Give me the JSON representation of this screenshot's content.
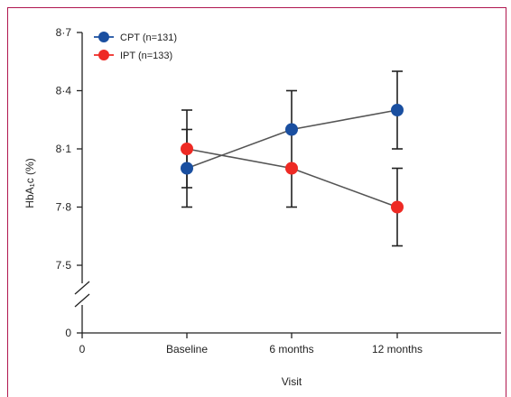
{
  "chart_data": {
    "type": "line",
    "categories": [
      "Baseline",
      "6 months",
      "12 months"
    ],
    "x_origin_label": "0",
    "y_zero_label": "0",
    "y_tick_labels": [
      "7·5",
      "7·8",
      "8·1",
      "8·4",
      "8·7"
    ],
    "y_ticks": [
      7.5,
      7.8,
      8.1,
      8.4,
      8.7
    ],
    "ylim": [
      7.5,
      8.7
    ],
    "y_axis_break": true,
    "xlabel": "Visit",
    "ylabel": "HbA₁c (%)",
    "legend_position": "top-left",
    "series": [
      {
        "name": "CPT (n=131)",
        "color": "#1a4fa0",
        "values": [
          8.0,
          8.2,
          8.3
        ],
        "error_low": [
          7.9,
          8.0,
          8.1
        ],
        "error_high": [
          8.3,
          8.4,
          8.5
        ]
      },
      {
        "name": "IPT (n=133)",
        "color": "#ee2a24",
        "values": [
          8.1,
          8.0,
          7.8
        ],
        "error_low": [
          7.8,
          7.8,
          7.6
        ],
        "error_high": [
          8.2,
          8.0,
          8.0
        ]
      }
    ]
  }
}
